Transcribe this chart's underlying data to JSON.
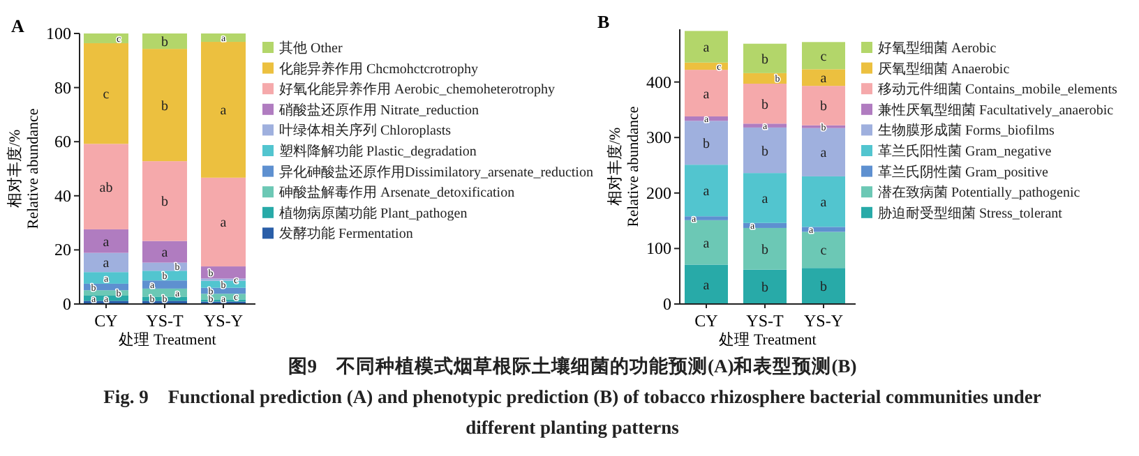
{
  "chart_data": [
    {
      "type": "bar",
      "stacked": true,
      "title": "A",
      "xlabel": "处理 Treatment",
      "ylabel": "相对丰度/%\nRelative abundance",
      "categories": [
        "CY",
        "YS-T",
        "YS-Y"
      ],
      "ylim": [
        0,
        100
      ],
      "yticks": [
        0,
        20,
        40,
        60,
        80,
        100
      ],
      "legend": "right",
      "series": [
        {
          "name": "发酵功能 Fermentation",
          "color": "#2a5ea8",
          "values": [
            1.2,
            1.2,
            0.9
          ],
          "value_labels": [
            "a",
            "b",
            "b"
          ]
        },
        {
          "name": "植物病原菌功能 Plant_pathogen",
          "color": "#28aaa8",
          "values": [
            1.9,
            1.4,
            0.8
          ],
          "value_labels": [
            "a",
            "b",
            "a"
          ]
        },
        {
          "name": "砷酸盐解毒作用 Arsenate_detoxification",
          "color": "#6cc8b5",
          "values": [
            2.0,
            3.1,
            2.1
          ],
          "value_labels": [
            "b",
            "a",
            "c"
          ]
        },
        {
          "name": "异化砷酸盐还原作用Dissimilatory_arsenate_reduction",
          "color": "#5e90d0",
          "values": [
            2.4,
            3.0,
            2.2
          ],
          "value_labels": [
            "b",
            "a",
            "b"
          ]
        },
        {
          "name": "塑料降解功能 Plastic_degradation",
          "color": "#52c5cf",
          "values": [
            4.3,
            3.6,
            2.6
          ],
          "value_labels": [
            "a",
            "b",
            "b"
          ]
        },
        {
          "name": "叶绿体相关序列 Chloroplasts",
          "color": "#9fb0de",
          "values": [
            7.1,
            3.0,
            0.8
          ],
          "value_labels": [
            "a",
            "b",
            "c"
          ]
        },
        {
          "name": "硝酸盐还原作用 Nitrate_reduction",
          "color": "#b07cc0",
          "values": [
            8.7,
            8.0,
            4.5
          ],
          "value_labels": [
            "a",
            "a",
            "b"
          ]
        },
        {
          "name": "好氧化能异养作用 Aerobic_chemoheterotrophy",
          "color": "#f5a9ab",
          "values": [
            31.6,
            29.5,
            32.8
          ],
          "value_labels": [
            "ab",
            "b",
            "a"
          ]
        },
        {
          "name": "化能异养作用 Chcmohctcrotrophy",
          "color": "#ecc03f",
          "values": [
            37.2,
            41.5,
            50.2
          ],
          "value_labels": [
            "c",
            "b",
            "a"
          ]
        },
        {
          "name": "其他 Other",
          "color": "#b3d66a",
          "values": [
            3.6,
            5.7,
            3.1
          ],
          "value_labels": [
            "c",
            "b",
            "a"
          ]
        }
      ],
      "annotations": [
        "图9　不同种植模式烟草根际土壤细菌的功能预测(A)和表型预测(B)",
        "Fig. 9　Functional prediction (A) and phenotypic prediction (B) of tobacco rhizosphere bacterial communities under different planting patterns"
      ]
    },
    {
      "type": "bar",
      "stacked": true,
      "title": "B",
      "xlabel": "处理 Treatment",
      "ylabel": "相对丰度/%\nRelative abundance",
      "categories": [
        "CY",
        "YS-T",
        "YS-Y"
      ],
      "ylim": [
        0,
        495
      ],
      "yticks": [
        0,
        100,
        200,
        300,
        400
      ],
      "legend": "right",
      "series": [
        {
          "name": "胁迫耐受型细菌 Stress_tolerant",
          "color": "#28aaa8",
          "values": [
            71,
            62,
            65
          ],
          "value_labels": [
            "a",
            "b",
            "b"
          ]
        },
        {
          "name": "潜在致病菌 Potentially_pathogenic",
          "color": "#6cc8b5",
          "values": [
            80,
            75,
            65
          ],
          "value_labels": [
            "a",
            "b",
            "c"
          ]
        },
        {
          "name": "革兰氏阴性菌 Gram_positive",
          "color": "#5e90d0",
          "values": [
            7,
            9,
            9
          ],
          "value_labels": [
            "a",
            "a",
            "a"
          ]
        },
        {
          "name": "革兰氏阳性菌 Gram_negative",
          "color": "#52c5cf",
          "values": [
            93,
            90,
            91
          ],
          "value_labels": [
            "a",
            "a",
            "a"
          ]
        },
        {
          "name": "生物膜形成菌 Forms_biofilms",
          "color": "#9fb0de",
          "values": [
            79,
            82,
            87
          ],
          "value_labels": [
            "b",
            "b",
            "a"
          ]
        },
        {
          "name": "兼性厌氧型细菌 Facultatively_anaerobic",
          "color": "#b07cc0",
          "values": [
            8,
            7,
            5
          ],
          "value_labels": [
            "a",
            "a",
            "b"
          ]
        },
        {
          "name": "移动元件细菌 Contains_mobile_elements",
          "color": "#f5a9ab",
          "values": [
            84,
            72,
            71
          ],
          "value_labels": [
            "a",
            "b",
            "b"
          ]
        },
        {
          "name": "厌氧型细菌 Anaerobic",
          "color": "#ecc03f",
          "values": [
            13,
            19,
            30
          ],
          "value_labels": [
            "c",
            "b",
            "a"
          ]
        },
        {
          "name": "好氧型细菌 Aerobic",
          "color": "#b3d66a",
          "values": [
            57,
            53,
            49
          ],
          "value_labels": [
            "a",
            "b",
            "c"
          ]
        }
      ]
    }
  ]
}
